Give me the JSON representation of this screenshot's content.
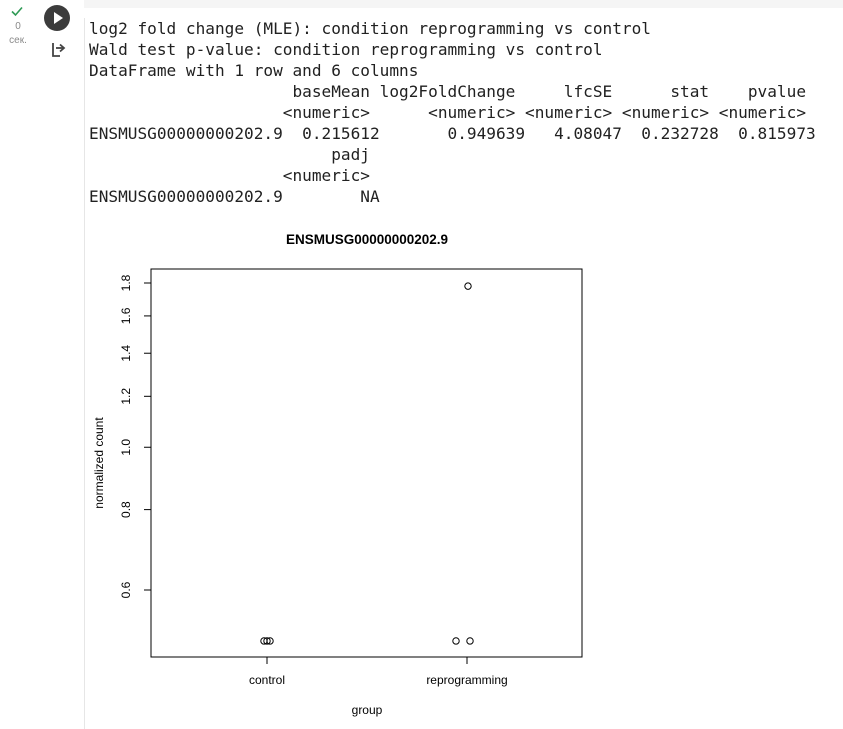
{
  "cell": {
    "status_icon": "check-icon",
    "exec_count": "0",
    "exec_unit": "сек.",
    "run_icon": "play-icon",
    "output_icon": "output-arrow-icon"
  },
  "console": {
    "lines": [
      "log2 fold change (MLE): condition reprogramming vs control",
      "Wald test p-value: condition reprogramming vs control",
      "DataFrame with 1 row and 6 columns",
      "                     baseMean log2FoldChange     lfcSE      stat    pvalue",
      "                    <numeric>      <numeric> <numeric> <numeric> <numeric>",
      "ENSMUSG00000000202.9  0.215612       0.949639   4.08047  0.232728  0.815973",
      "                         padj",
      "                    <numeric>",
      "ENSMUSG00000000202.9        NA"
    ]
  },
  "chart_data": {
    "type": "scatter",
    "title": "ENSMUSG00000000202.9",
    "xlabel": "group",
    "ylabel": "normalized count",
    "y_scale": "log",
    "categories": [
      "control",
      "reprogramming"
    ],
    "yticks": [
      "0.6",
      "0.8",
      "1.0",
      "1.2",
      "1.4",
      "1.6",
      "1.8"
    ],
    "ylim": [
      0.5,
      1.85
    ],
    "grid": false,
    "points": [
      {
        "group": "control",
        "y": 0.5
      },
      {
        "group": "control",
        "y": 0.5
      },
      {
        "group": "control",
        "y": 0.5
      },
      {
        "group": "reprogramming",
        "y": 0.5
      },
      {
        "group": "reprogramming",
        "y": 0.5
      },
      {
        "group": "reprogramming",
        "y": 1.78
      }
    ]
  }
}
